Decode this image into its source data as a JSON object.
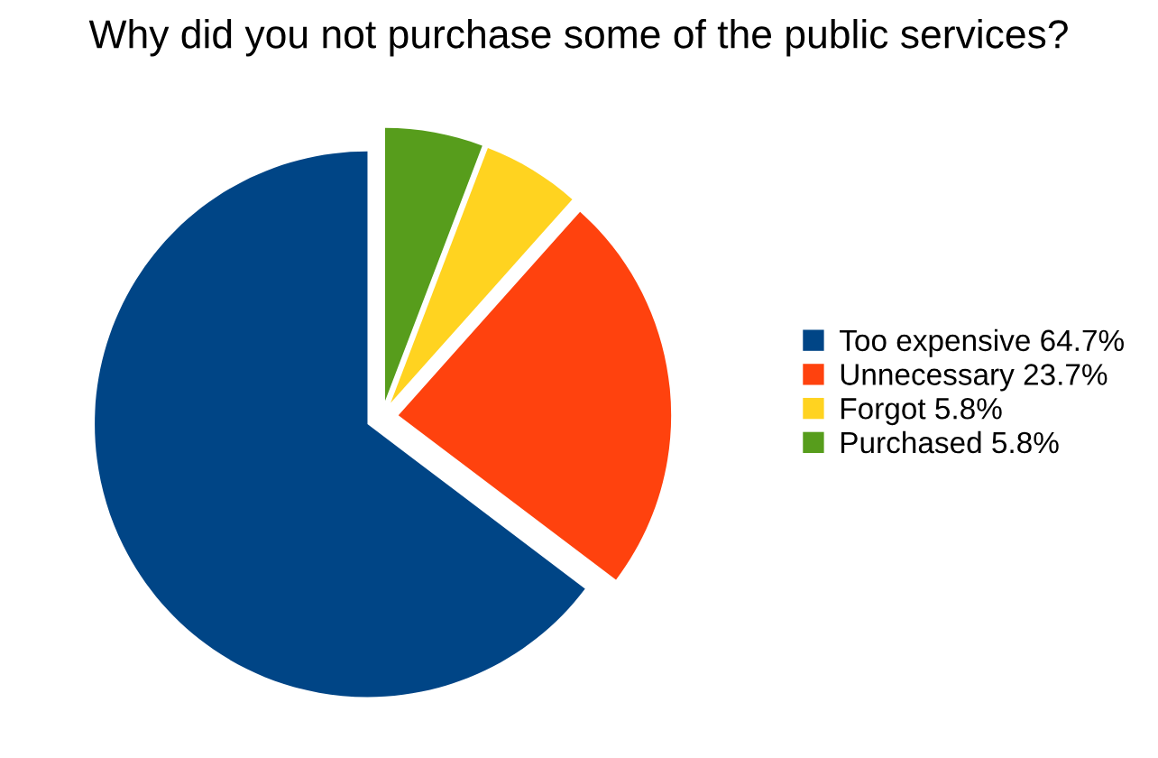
{
  "chart_data": {
    "type": "pie",
    "title": "Why did you not purchase some of the public services?",
    "categories": [
      "Too expensive 64.7%",
      "Unnecessary 23.7%",
      "Forgot 5.8%",
      "Purchased 5.8%"
    ],
    "values": [
      64.7,
      23.7,
      5.8,
      5.8
    ],
    "colors": [
      "#004586",
      "#ff420e",
      "#ffd320",
      "#579d1c"
    ],
    "legend": "right"
  }
}
